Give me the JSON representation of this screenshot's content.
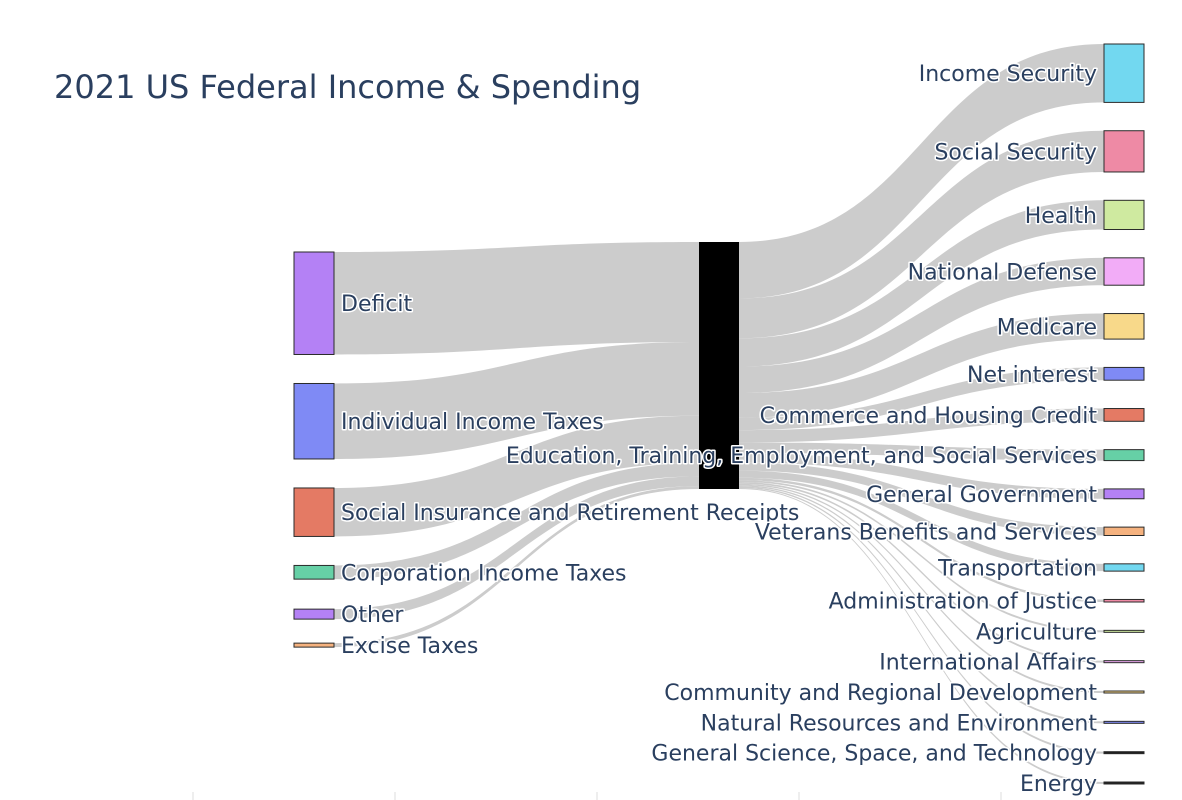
{
  "chart_data": {
    "type": "sankey",
    "title": "2021 US Federal Income & Spending",
    "center_node": {
      "name": "Education, Training, Employment, and Social Services",
      "color": "#000000"
    },
    "sources": [
      {
        "name": "Deficit",
        "value": 2.77,
        "color": "#b481f5"
      },
      {
        "name": "Individual Income Taxes",
        "value": 2.04,
        "color": "#7f8af5"
      },
      {
        "name": "Social Insurance and Retirement Receipts",
        "value": 1.31,
        "color": "#e47a64"
      },
      {
        "name": "Corporation Income Taxes",
        "value": 0.37,
        "color": "#66d0a6"
      },
      {
        "name": "Other",
        "value": 0.27,
        "color": "#b481f5"
      },
      {
        "name": "Excise Taxes",
        "value": 0.08,
        "color": "#f5b27f"
      }
    ],
    "targets": [
      {
        "name": "Income Security",
        "value": 1.6,
        "color": "#72d8f0"
      },
      {
        "name": "Social Security",
        "value": 1.13,
        "color": "#ee8aa5"
      },
      {
        "name": "Health",
        "value": 0.8,
        "color": "#cfeaa0"
      },
      {
        "name": "National Defense",
        "value": 0.75,
        "color": "#f2acf7"
      },
      {
        "name": "Medicare",
        "value": 0.7,
        "color": "#f8d98a"
      },
      {
        "name": "Net interest",
        "value": 0.35,
        "color": "#7f8af5"
      },
      {
        "name": "Commerce and Housing Credit",
        "value": 0.35,
        "color": "#e47a64"
      },
      {
        "name": "Education, Training, Employment, and Social Services",
        "value": 0.3,
        "color": "#66d0a6"
      },
      {
        "name": "General Government",
        "value": 0.27,
        "color": "#b481f5"
      },
      {
        "name": "Veterans Benefits and Services",
        "value": 0.23,
        "color": "#f5b27f"
      },
      {
        "name": "Transportation",
        "value": 0.2,
        "color": "#72d8f0"
      },
      {
        "name": "Administration of Justice",
        "value": 0.07,
        "color": "#ee8aa5"
      },
      {
        "name": "Agriculture",
        "value": 0.05,
        "color": "#cfeaa0"
      },
      {
        "name": "International Affairs",
        "value": 0.05,
        "color": "#f2acf7"
      },
      {
        "name": "Community and Regional Development",
        "value": 0.04,
        "color": "#f8d98a"
      },
      {
        "name": "Natural Resources and Environment",
        "value": 0.04,
        "color": "#7f8af5"
      },
      {
        "name": "General Science, Space, and Technology",
        "value": 0.04,
        "color": "#1e1e1e"
      },
      {
        "name": "Energy",
        "value": 0.03,
        "color": "#1e1e1e"
      }
    ]
  }
}
